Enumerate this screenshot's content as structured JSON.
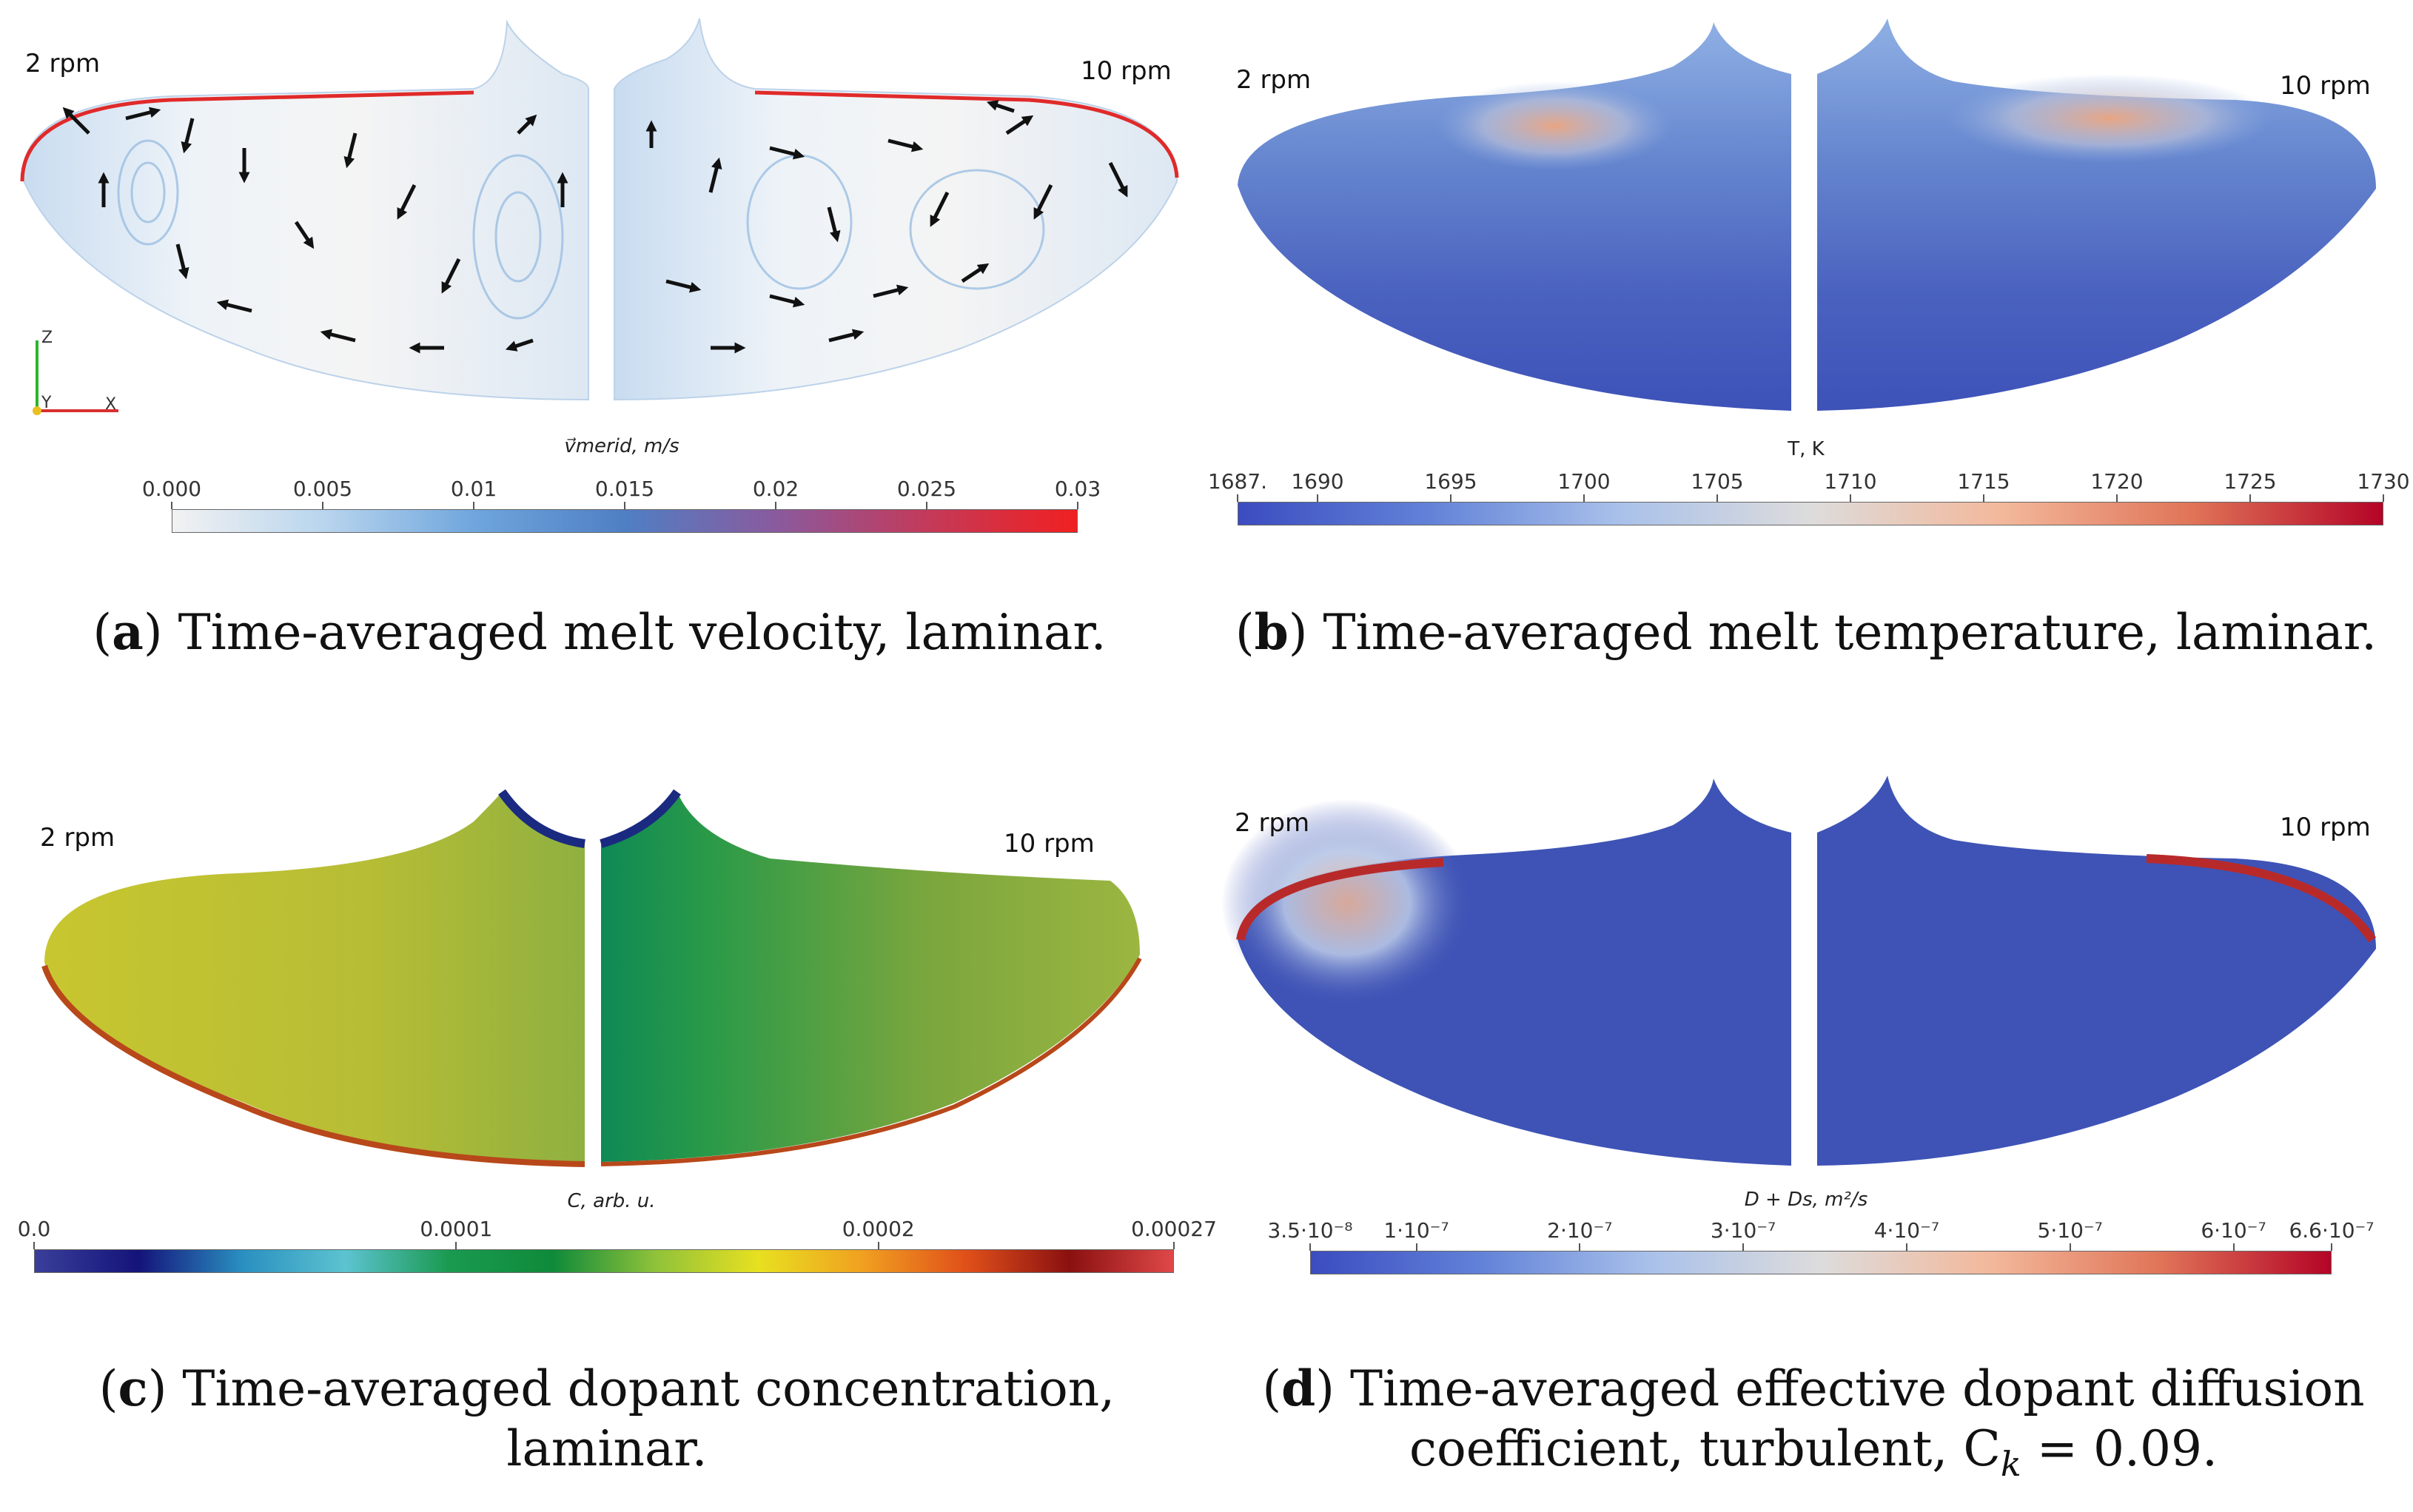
{
  "panels": {
    "a": {
      "left_label": "2 rpm",
      "right_label": "10 rpm",
      "colorbar_title": "v⃗merid, m/s",
      "ticks": [
        "0.000",
        "0.005",
        "0.01",
        "0.015",
        "0.02",
        "0.025",
        "0.03"
      ],
      "tick_values": [
        0.0,
        0.005,
        0.01,
        0.015,
        0.02,
        0.025,
        0.03
      ],
      "range": [
        0.0,
        0.03
      ],
      "colors": [
        "#f2f2f2",
        "#b9d5ee",
        "#6fa6dd",
        "#4f7fc4",
        "#8a5a9e",
        "#c33a5a",
        "#f02020"
      ],
      "axis": {
        "z": "Z",
        "y": "Y",
        "x": "X"
      },
      "caption_letter": "a",
      "caption_text": "Time-averaged melt velocity, laminar."
    },
    "b": {
      "left_label": "2 rpm",
      "right_label": "10 rpm",
      "colorbar_title": "T, K",
      "ticks": [
        "1687.",
        "1690",
        "1695",
        "1700",
        "1705",
        "1710",
        "1715",
        "1720",
        "1725",
        "1730"
      ],
      "tick_values": [
        1687,
        1690,
        1695,
        1700,
        1705,
        1710,
        1715,
        1720,
        1725,
        1730
      ],
      "range": [
        1687,
        1730
      ],
      "colors": [
        "#3b4cc0",
        "#6282d8",
        "#a9c1ea",
        "#dddcdc",
        "#f3b89b",
        "#e07458",
        "#b40426"
      ],
      "caption_letter": "b",
      "caption_text": "Time-averaged melt temperature, laminar."
    },
    "c": {
      "left_label": "2 rpm",
      "right_label": "10 rpm",
      "colorbar_title": "C, arb. u.",
      "ticks": [
        "0.0",
        "0.0001",
        "0.0002",
        "0.00027"
      ],
      "tick_values": [
        0.0,
        0.0001,
        0.0002,
        0.00027
      ],
      "range": [
        0.0,
        0.00027
      ],
      "colors": [
        "#3a3f9a",
        "#14137a",
        "#2a8fc0",
        "#5cc3d0",
        "#1a9a50",
        "#0f8a3a",
        "#8fc23a",
        "#e8e020",
        "#f0a020",
        "#e0501a",
        "#8a1010",
        "#e04848"
      ],
      "caption_letter": "c",
      "caption_text": "Time-averaged dopant concentration, laminar."
    },
    "d": {
      "left_label": "2 rpm",
      "right_label": "10 rpm",
      "colorbar_title": "D + Ds, m²/s",
      "ticks": [
        "3.5·10⁻⁸",
        "1·10⁻⁷",
        "2·10⁻⁷",
        "3·10⁻⁷",
        "4·10⁻⁷",
        "5·10⁻⁷",
        "6·10⁻⁷",
        "6.6·10⁻⁷"
      ],
      "tick_values": [
        3.5e-08,
        1e-07,
        2e-07,
        3e-07,
        4e-07,
        5e-07,
        6e-07,
        6.6e-07
      ],
      "range": [
        3.5e-08,
        6.6e-07
      ],
      "colors": [
        "#3b4cc0",
        "#6282d8",
        "#a9c1ea",
        "#dddcdc",
        "#f3b89b",
        "#e07458",
        "#b40426"
      ],
      "caption_letter": "d",
      "caption_text_line1": "Time-averaged effective dopant diffusion",
      "caption_text_line2": "coefficient, turbulent, C",
      "caption_sub": "k",
      "caption_tail": " = 0.09."
    }
  }
}
